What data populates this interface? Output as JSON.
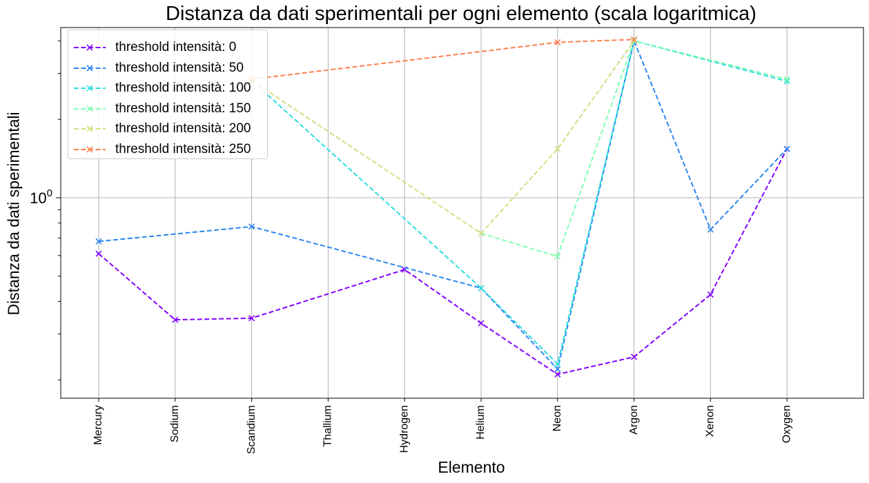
{
  "chart_data": {
    "type": "line",
    "title": "Distanza da dati sperimentali per ogni elemento (scala logaritmica)",
    "xlabel": "Elemento",
    "ylabel": "Distanza da dati sperimentali",
    "yscale": "log",
    "yticks": [
      {
        "value": 1,
        "label": "10",
        "exponent": "0"
      }
    ],
    "ylim": [
      0.17,
      4.5
    ],
    "grid": true,
    "legend_position": "top-left",
    "categories": [
      "Mercury",
      "Sodium",
      "Scandium",
      "Thallium",
      "Hydrogen",
      "Helium",
      "Neon",
      "Argon",
      "Xenon",
      "Oxygen"
    ],
    "series": [
      {
        "name": "threshold intensità: 0",
        "color": "#8000ff",
        "values": [
          0.61,
          0.34,
          0.345,
          null,
          0.53,
          0.33,
          0.21,
          0.245,
          0.425,
          1.54
        ]
      },
      {
        "name": "threshold intensità: 50",
        "color": "#2a86f0",
        "values": [
          0.68,
          null,
          0.775,
          null,
          null,
          0.45,
          0.22,
          4.0,
          0.755,
          1.54
        ]
      },
      {
        "name": "threshold intensità: 100",
        "color": "#2adddd",
        "values": [
          null,
          null,
          2.82,
          null,
          null,
          0.45,
          0.23,
          4.0,
          null,
          2.8
        ]
      },
      {
        "name": "threshold intensità: 150",
        "color": "#80ffb4",
        "values": [
          null,
          null,
          null,
          null,
          null,
          0.73,
          0.595,
          4.0,
          null,
          2.85
        ]
      },
      {
        "name": "threshold intensità: 200",
        "color": "#d4dd80",
        "values": [
          null,
          null,
          2.82,
          null,
          null,
          0.73,
          1.54,
          4.0,
          null,
          null
        ]
      },
      {
        "name": "threshold intensità: 250",
        "color": "#ff7f4e",
        "values": [
          null,
          null,
          2.85,
          null,
          null,
          null,
          3.95,
          4.05,
          null,
          null
        ]
      }
    ]
  }
}
